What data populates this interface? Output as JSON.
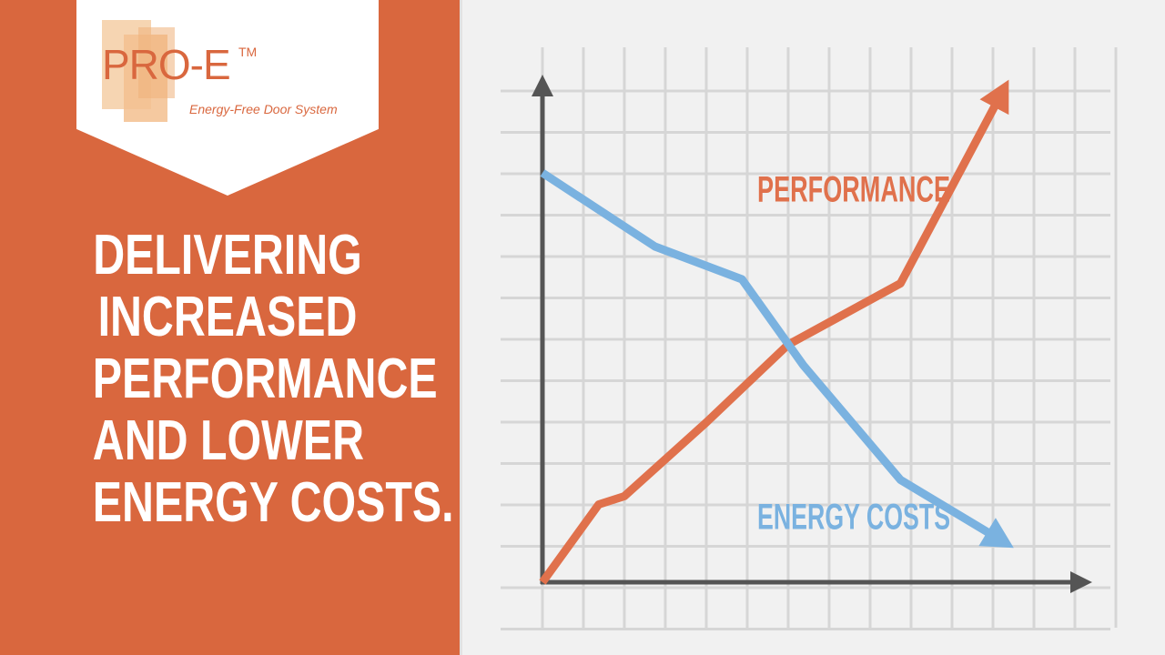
{
  "logo": {
    "brand": "PRO-E",
    "trademark": "TM",
    "tagline": "Energy-Free Door System"
  },
  "headline": {
    "lines": [
      "DELIVERING",
      "INCREASED",
      "PERFORMANCE",
      "AND LOWER",
      "ENERGY COSTS."
    ]
  },
  "colors": {
    "panel": "#d9673e",
    "performance": "#e0714c",
    "energy_costs": "#7ab2e0",
    "axis": "#555555",
    "grid": "#d6d6d6"
  },
  "chart_data": {
    "type": "line",
    "title": "",
    "xlabel": "",
    "ylabel": "",
    "xlim": [
      0,
      10
    ],
    "ylim": [
      0,
      10
    ],
    "grid": true,
    "series": [
      {
        "name": "PERFORMANCE",
        "color": "#e0714c",
        "x": [
          0,
          1.1,
          1.6,
          3.2,
          4.8,
          7.0,
          9.0
        ],
        "y": [
          0,
          1.9,
          2.1,
          3.9,
          5.8,
          7.3,
          12.0
        ]
      },
      {
        "name": "ENERGY COSTS",
        "color": "#7ab2e0",
        "x": [
          0,
          2.2,
          3.9,
          5.1,
          7.0,
          9.0
        ],
        "y": [
          10.0,
          8.2,
          7.4,
          5.3,
          2.5,
          1.0
        ]
      }
    ],
    "labels": [
      {
        "text": "PERFORMANCE",
        "series": 0,
        "x": 4.2,
        "y": 9.3
      },
      {
        "text": "ENERGY COSTS",
        "series": 1,
        "x": 4.2,
        "y": 1.3
      }
    ]
  }
}
